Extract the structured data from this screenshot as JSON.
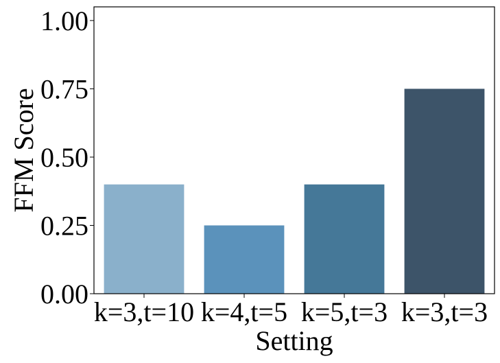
{
  "chart_data": {
    "type": "bar",
    "title": "",
    "xlabel": "Setting",
    "ylabel": "FFM Score",
    "categories": [
      "k=3,t=10",
      "k=4,t=5",
      "k=5,t=3",
      "k=3,t=3"
    ],
    "values": [
      0.4,
      0.25,
      0.4,
      0.75
    ],
    "colors": [
      "#8ab0cb",
      "#5b92bb",
      "#457898",
      "#3d5469"
    ],
    "ylim": [
      0,
      1.05
    ],
    "yticks": [
      "0.00",
      "0.25",
      "0.50",
      "0.75",
      "1.00"
    ],
    "grid": false,
    "legend": "none"
  }
}
